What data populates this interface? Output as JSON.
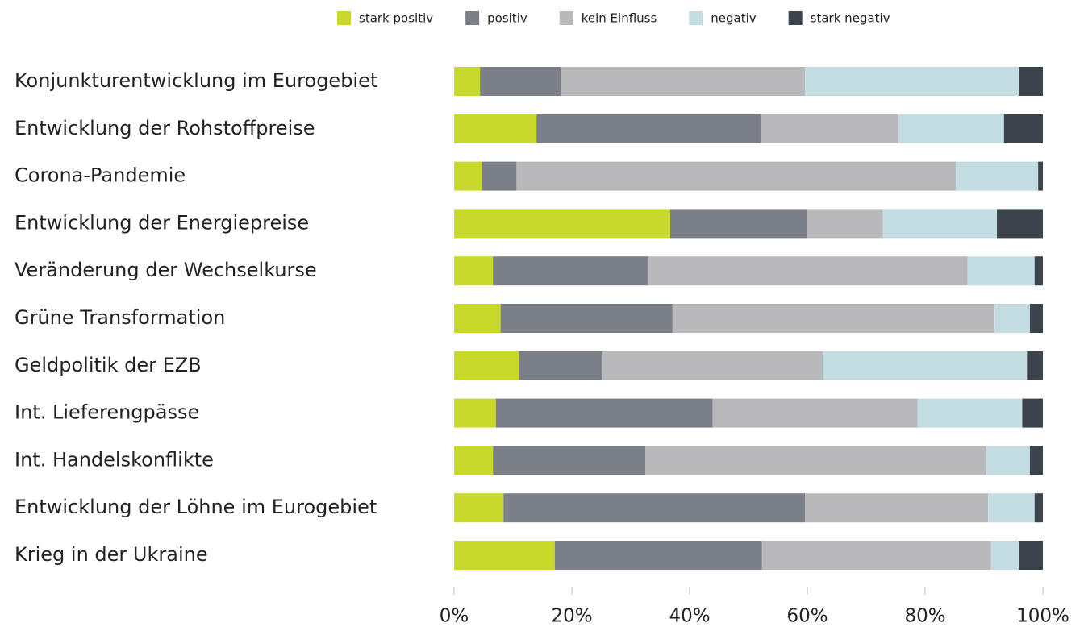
{
  "chart_data": {
    "type": "stacked_bar_horizontal",
    "categories": [
      "Konjunkturentwicklung im Eurogebiet",
      "Entwicklung der Rohstoffpreise",
      "Corona-Pandemie",
      "Entwicklung der Energiepreise",
      "Veränderung der Wechselkurse",
      "Grüne Transformation",
      "Geldpolitik der EZB",
      "Int. Lieferengpässe",
      "Int. Handelskonflikte",
      "Entwicklung der Löhne im Eurogebiet",
      "Krieg in der Ukraine"
    ],
    "series": [
      {
        "name": "stark positiv",
        "color": "#c9d92b",
        "values": [
          4.4,
          14.0,
          4.7,
          36.7,
          6.6,
          7.9,
          11.0,
          7.1,
          6.6,
          8.4,
          17.1
        ]
      },
      {
        "name": "positiv",
        "color": "#7b7f88",
        "values": [
          13.7,
          38.1,
          5.9,
          23.2,
          26.4,
          29.2,
          14.2,
          36.8,
          25.9,
          51.2,
          35.2
        ]
      },
      {
        "name": "kein Einfluss",
        "color": "#b9b9bb",
        "values": [
          41.5,
          23.3,
          74.6,
          12.9,
          54.2,
          54.7,
          37.4,
          34.8,
          57.9,
          31.1,
          38.9
        ]
      },
      {
        "name": "negativ",
        "color": "#c4dde2",
        "values": [
          36.3,
          18.0,
          14.0,
          19.4,
          11.4,
          6.0,
          34.7,
          17.8,
          7.4,
          7.9,
          4.7
        ]
      },
      {
        "name": "stark negativ",
        "color": "#3b444d",
        "values": [
          4.1,
          6.6,
          0.8,
          7.8,
          1.4,
          2.2,
          2.7,
          3.5,
          2.2,
          1.4,
          4.1
        ]
      }
    ],
    "xlim": [
      0,
      100
    ],
    "xticks": [
      {
        "value": 0,
        "label": "0%"
      },
      {
        "value": 20,
        "label": "20%"
      },
      {
        "value": 40,
        "label": "40%"
      },
      {
        "value": 60,
        "label": "60%"
      },
      {
        "value": 80,
        "label": "80%"
      },
      {
        "value": 100,
        "label": "100%"
      }
    ],
    "legend": "top"
  }
}
